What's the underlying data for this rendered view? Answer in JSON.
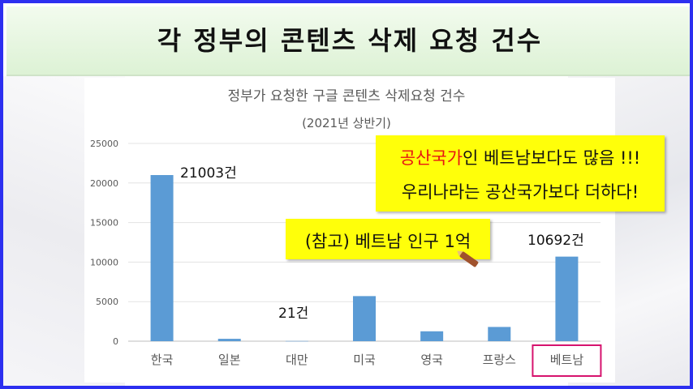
{
  "header": {
    "title": "각 정부의 콘텐츠 삭제 요청 건수"
  },
  "chart_data": {
    "type": "bar",
    "title": "정부가 요청한 구글 콘텐츠 삭제요청 건수",
    "subtitle": "(2021년 상반기)",
    "categories": [
      "한국",
      "일본",
      "대만",
      "미국",
      "영국",
      "프랑스",
      "베트남"
    ],
    "values": [
      21003,
      300,
      21,
      5700,
      1250,
      1800,
      10692
    ],
    "yticks": [
      "0",
      "5000",
      "10000",
      "15000",
      "20000",
      "25000"
    ],
    "ylim": [
      0,
      25000
    ],
    "grid": true,
    "bar_color": "#5b9bd5",
    "highlight_category": "베트남",
    "highlight_color": "#d6136e"
  },
  "annotations": {
    "korea_label": "21003건",
    "taiwan_label": "21건",
    "vietnam_label": "10692건",
    "note1_red": "공산국가",
    "note1_rest": "인 베트남보다도 많음 !!!",
    "note1_line2": "우리나라는 공산국가보다 더하다!",
    "note2": "(참고) 베트남 인구 1억"
  },
  "colors": {
    "frame": "#2c2ff0",
    "header_bg": "#e4f5dc",
    "note_bg": "#ffff0a"
  }
}
